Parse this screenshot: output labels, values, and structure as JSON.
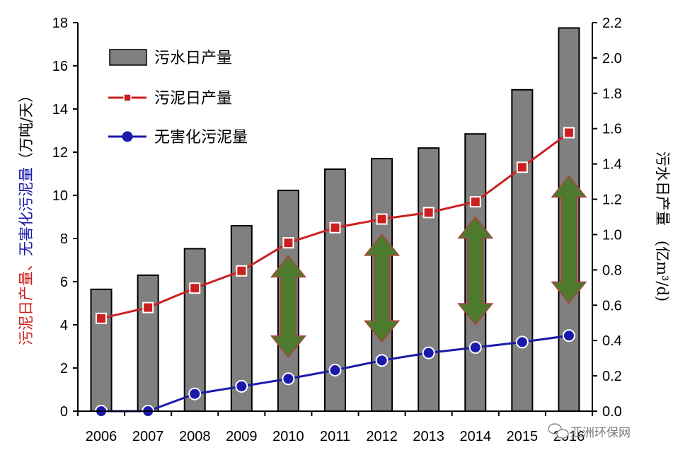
{
  "chart_data": {
    "type": "bar+line",
    "categories": [
      "2006",
      "2007",
      "2008",
      "2009",
      "2010",
      "2011",
      "2012",
      "2013",
      "2014",
      "2015",
      "2016"
    ],
    "series": [
      {
        "name": "污水日产量",
        "kind": "bar",
        "axis": "right",
        "color": "#808080",
        "values": [
          0.69,
          0.77,
          0.92,
          1.05,
          1.25,
          1.37,
          1.43,
          1.49,
          1.57,
          1.82,
          2.17
        ]
      },
      {
        "name": "污泥日产量",
        "kind": "line",
        "axis": "left",
        "color": "#cc2020",
        "values": [
          4.3,
          4.8,
          5.7,
          6.5,
          7.8,
          8.5,
          8.9,
          9.2,
          9.7,
          11.3,
          12.9
        ]
      },
      {
        "name": "无害化污泥量",
        "kind": "line",
        "axis": "left",
        "color": "#1a1aaa",
        "values": [
          0.0,
          0.0,
          0.8,
          1.15,
          1.5,
          1.9,
          2.35,
          2.7,
          2.95,
          3.2,
          3.5
        ]
      }
    ],
    "left_axis": {
      "min": 0,
      "max": 18,
      "ticks": [
        "0",
        "2",
        "4",
        "6",
        "8",
        "10",
        "12",
        "14",
        "16",
        "18"
      ]
    },
    "right_axis": {
      "min": 0,
      "max": 2.2,
      "ticks": [
        "0.0",
        "0.2",
        "0.4",
        "0.6",
        "0.8",
        "1.0",
        "1.2",
        "1.4",
        "1.6",
        "1.8",
        "2.0",
        "2.2"
      ]
    },
    "ylabel_left": {
      "red_part": "污泥日产量、",
      "blue_part": "无害化污泥量",
      "black_part": "（万吨/天）"
    },
    "ylabel_right": "污水日产量　(亿m³/d)",
    "gap_arrows": {
      "color": "#4e7a2e",
      "spans": [
        {
          "year": "2010",
          "from": 2.5,
          "to": 7.2
        },
        {
          "year": "2012",
          "from": 3.2,
          "to": 8.2
        },
        {
          "year": "2014",
          "from": 4.0,
          "to": 9.0
        },
        {
          "year": "2016",
          "from": 5.0,
          "to": 10.9
        }
      ]
    },
    "legend_position": "top-left"
  },
  "watermark": {
    "text": "亚洲环保网",
    "icon": "wechat-icon"
  }
}
